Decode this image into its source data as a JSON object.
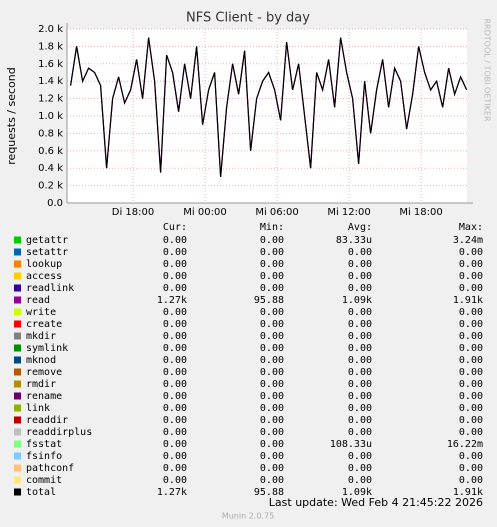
{
  "chart_data": {
    "type": "line",
    "title": "NFS Client - by day",
    "y_label": "requests / second",
    "side_text": "RRDTOOL / TOBI OETIKER",
    "xlim": [
      12.5,
      45.83
    ],
    "xticks": [
      {
        "value": 18,
        "label": "Di 18:00"
      },
      {
        "value": 24,
        "label": "Mi 00:00"
      },
      {
        "value": 30,
        "label": "Mi 06:00"
      },
      {
        "value": 36,
        "label": "Mi 12:00"
      },
      {
        "value": 42,
        "label": "Mi 18:00"
      }
    ],
    "ylim": [
      0,
      2000
    ],
    "yticks": [
      {
        "value": 0,
        "label": "0.0"
      },
      {
        "value": 200,
        "label": "0.2 k"
      },
      {
        "value": 400,
        "label": "0.4 k"
      },
      {
        "value": 600,
        "label": "0.6 k"
      },
      {
        "value": 800,
        "label": "0.8 k"
      },
      {
        "value": 1000,
        "label": "1.0 k"
      },
      {
        "value": 1200,
        "label": "1.2 k"
      },
      {
        "value": 1400,
        "label": "1.4 k"
      },
      {
        "value": 1600,
        "label": "1.6 k"
      },
      {
        "value": 1800,
        "label": "1.8 k"
      },
      {
        "value": 2000,
        "label": "2.0 k"
      }
    ],
    "grid": true,
    "x": [
      12.8,
      13.3,
      13.8,
      14.3,
      14.8,
      15.3,
      15.8,
      16.3,
      16.8,
      17.3,
      17.8,
      18.3,
      18.8,
      19.3,
      19.8,
      20.3,
      20.8,
      21.3,
      21.8,
      22.3,
      22.8,
      23.3,
      23.8,
      24.3,
      24.8,
      25.3,
      25.8,
      26.3,
      26.8,
      27.3,
      27.8,
      28.3,
      28.8,
      29.3,
      29.8,
      30.3,
      30.8,
      31.3,
      31.8,
      32.3,
      32.8,
      33.3,
      33.8,
      34.3,
      34.8,
      35.3,
      35.8,
      36.3,
      36.8,
      37.3,
      37.8,
      38.3,
      38.8,
      39.3,
      39.8,
      40.3,
      40.8,
      41.3,
      41.8,
      42.3,
      42.8,
      43.3,
      43.8,
      44.3,
      44.8,
      45.3,
      45.8
    ],
    "legend_headers": [
      "Cur:",
      "Min:",
      "Avg:",
      "Max:"
    ],
    "series": [
      {
        "name": "getattr",
        "color": "#00cc00",
        "cur": "0.00",
        "min": "0.00",
        "avg": "83.33u",
        "max": "3.24m"
      },
      {
        "name": "setattr",
        "color": "#0066b3",
        "cur": "0.00",
        "min": "0.00",
        "avg": "0.00",
        "max": "0.00"
      },
      {
        "name": "lookup",
        "color": "#ff8000",
        "cur": "0.00",
        "min": "0.00",
        "avg": "0.00",
        "max": "0.00"
      },
      {
        "name": "access",
        "color": "#ffcc00",
        "cur": "0.00",
        "min": "0.00",
        "avg": "0.00",
        "max": "0.00"
      },
      {
        "name": "readlink",
        "color": "#330099",
        "cur": "0.00",
        "min": "0.00",
        "avg": "0.00",
        "max": "0.00"
      },
      {
        "name": "read",
        "color": "#990099",
        "cur": "1.27k",
        "min": "95.88",
        "avg": "1.09k",
        "max": "1.91k",
        "values": [
          1350,
          1800,
          1400,
          1550,
          1500,
          1350,
          400,
          1200,
          1450,
          1150,
          1300,
          1650,
          1200,
          1900,
          1400,
          350,
          1700,
          1500,
          1050,
          1600,
          1200,
          1800,
          900,
          1300,
          1500,
          300,
          1100,
          1600,
          1250,
          1750,
          600,
          1200,
          1400,
          1500,
          1300,
          950,
          1850,
          1300,
          1600,
          1000,
          400,
          1500,
          1300,
          1650,
          1100,
          1900,
          1500,
          1200,
          450,
          1400,
          800,
          1300,
          1650,
          1100,
          1550,
          1400,
          850,
          1250,
          1800,
          1500,
          1300,
          1400,
          1100,
          1550,
          1250,
          1450,
          1300
        ]
      },
      {
        "name": "write",
        "color": "#ccff00",
        "cur": "0.00",
        "min": "0.00",
        "avg": "0.00",
        "max": "0.00"
      },
      {
        "name": "create",
        "color": "#ff0000",
        "cur": "0.00",
        "min": "0.00",
        "avg": "0.00",
        "max": "0.00"
      },
      {
        "name": "mkdir",
        "color": "#808080",
        "cur": "0.00",
        "min": "0.00",
        "avg": "0.00",
        "max": "0.00"
      },
      {
        "name": "symlink",
        "color": "#008f00",
        "cur": "0.00",
        "min": "0.00",
        "avg": "0.00",
        "max": "0.00"
      },
      {
        "name": "mknod",
        "color": "#00487d",
        "cur": "0.00",
        "min": "0.00",
        "avg": "0.00",
        "max": "0.00"
      },
      {
        "name": "remove",
        "color": "#b35a00",
        "cur": "0.00",
        "min": "0.00",
        "avg": "0.00",
        "max": "0.00"
      },
      {
        "name": "rmdir",
        "color": "#b38f00",
        "cur": "0.00",
        "min": "0.00",
        "avg": "0.00",
        "max": "0.00"
      },
      {
        "name": "rename",
        "color": "#6b006b",
        "cur": "0.00",
        "min": "0.00",
        "avg": "0.00",
        "max": "0.00"
      },
      {
        "name": "link",
        "color": "#8fb300",
        "cur": "0.00",
        "min": "0.00",
        "avg": "0.00",
        "max": "0.00"
      },
      {
        "name": "readdir",
        "color": "#b30000",
        "cur": "0.00",
        "min": "0.00",
        "avg": "0.00",
        "max": "0.00"
      },
      {
        "name": "readdirplus",
        "color": "#bebebe",
        "cur": "0.00",
        "min": "0.00",
        "avg": "0.00",
        "max": "0.00"
      },
      {
        "name": "fsstat",
        "color": "#80ff80",
        "cur": "0.00",
        "min": "0.00",
        "avg": "108.33u",
        "max": "16.22m"
      },
      {
        "name": "fsinfo",
        "color": "#80c9ff",
        "cur": "0.00",
        "min": "0.00",
        "avg": "0.00",
        "max": "0.00"
      },
      {
        "name": "pathconf",
        "color": "#ffc080",
        "cur": "0.00",
        "min": "0.00",
        "avg": "0.00",
        "max": "0.00"
      },
      {
        "name": "commit",
        "color": "#ffe680",
        "cur": "0.00",
        "min": "0.00",
        "avg": "0.00",
        "max": "0.00"
      },
      {
        "name": "total",
        "color": "#000000",
        "cur": "1.27k",
        "min": "95.88",
        "avg": "1.09k",
        "max": "1.91k",
        "values": [
          1350,
          1800,
          1400,
          1550,
          1500,
          1350,
          400,
          1200,
          1450,
          1150,
          1300,
          1650,
          1200,
          1900,
          1400,
          350,
          1700,
          1500,
          1050,
          1600,
          1200,
          1800,
          900,
          1300,
          1500,
          300,
          1100,
          1600,
          1250,
          1750,
          600,
          1200,
          1400,
          1500,
          1300,
          950,
          1850,
          1300,
          1600,
          1000,
          400,
          1500,
          1300,
          1650,
          1100,
          1900,
          1500,
          1200,
          450,
          1400,
          800,
          1300,
          1650,
          1100,
          1550,
          1400,
          850,
          1250,
          1800,
          1500,
          1300,
          1400,
          1100,
          1550,
          1250,
          1450,
          1300
        ]
      }
    ],
    "last_update": "Last update: Wed Feb  4 21:45:22 2026",
    "footer": "Munin 2.0.75"
  }
}
